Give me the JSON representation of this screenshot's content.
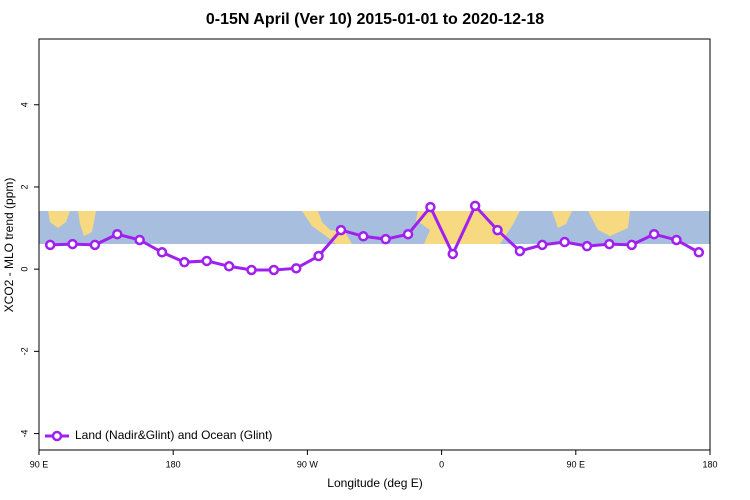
{
  "chart_data": {
    "type": "line",
    "title": "0-15N April (Ver 10)   2015-01-01 to 2020-12-18",
    "x_label": "Longitude (deg E)",
    "y_label": "XCO2 - MLO trend (ppm)",
    "x": [
      97.5,
      112.5,
      127.5,
      142.5,
      157.5,
      172.5,
      187.5,
      202.5,
      217.5,
      232.5,
      247.5,
      262.5,
      277.5,
      292.5,
      307.5,
      322.5,
      337.5,
      352.5,
      367.5,
      382.5,
      397.5,
      412.5,
      427.5,
      442.5,
      457.5,
      472.5,
      487.5,
      502.5,
      517.5,
      532.5
    ],
    "series": [
      {
        "name": "Land (Nadir&Glint) and Ocean (Glint)",
        "color": "#a020f0",
        "values": [
          0.59,
          0.61,
          0.59,
          0.85,
          0.71,
          0.41,
          0.17,
          0.2,
          0.07,
          -0.02,
          -0.02,
          0.02,
          0.32,
          0.95,
          0.8,
          0.73,
          0.85,
          1.51,
          0.37,
          1.54,
          0.95,
          0.44,
          0.59,
          0.66,
          0.56,
          0.61,
          0.59,
          0.85,
          0.71,
          0.41
        ]
      }
    ],
    "xlim": [
      90,
      540
    ],
    "ylim": [
      -4.4,
      5.6
    ],
    "xticks": [
      {
        "value": 90,
        "label": "90 E"
      },
      180,
      {
        "value": 270,
        "label": "90 W"
      },
      {
        "value": 360,
        "label": "0"
      },
      {
        "value": 450,
        "label": "90 E"
      },
      {
        "value": 540,
        "label": "180"
      }
    ],
    "yticks": [
      -4,
      -2,
      0,
      2,
      4
    ],
    "legend": "bottom-left"
  }
}
